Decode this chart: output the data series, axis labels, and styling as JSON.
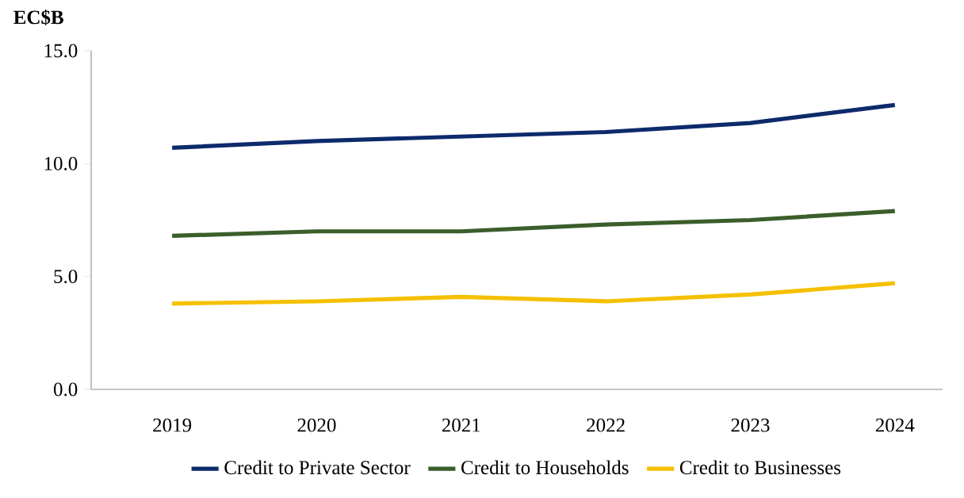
{
  "chart_data": {
    "type": "line",
    "ylabel": "EC$B",
    "categories": [
      "2019",
      "2020",
      "2021",
      "2022",
      "2023",
      "2024"
    ],
    "series": [
      {
        "name": "Credit to Private Sector",
        "color": "#0d2a6b",
        "values": [
          10.7,
          11.0,
          11.2,
          11.4,
          11.8,
          12.6
        ]
      },
      {
        "name": "Credit to Households",
        "color": "#3b5e2b",
        "values": [
          6.8,
          7.0,
          7.0,
          7.3,
          7.5,
          7.9
        ]
      },
      {
        "name": "Credit to Businesses",
        "color": "#f5c000",
        "values": [
          3.8,
          3.9,
          4.1,
          3.9,
          4.2,
          4.7
        ]
      }
    ],
    "ylim": [
      0,
      15
    ],
    "yticks": [
      {
        "value": 0,
        "label": "0.0"
      },
      {
        "value": 5,
        "label": "5.0"
      },
      {
        "value": 10,
        "label": "10.0"
      },
      {
        "value": 15,
        "label": "15.0"
      }
    ],
    "grid": false,
    "legend": "bottom"
  }
}
